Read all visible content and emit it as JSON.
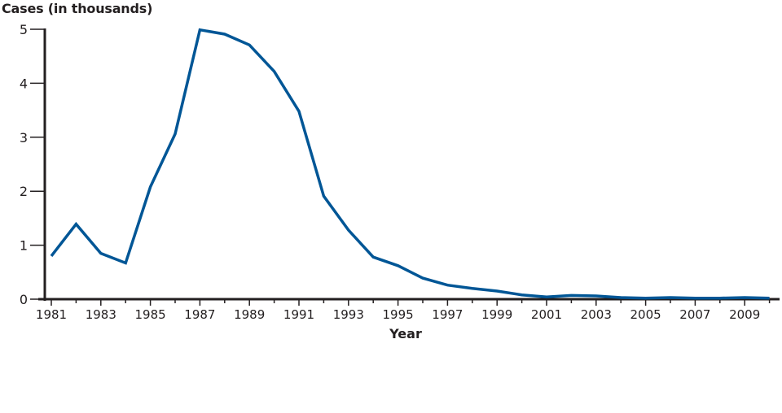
{
  "chart_data": {
    "type": "line",
    "title": "",
    "xlabel": "Year",
    "ylabel": "Cases (in thousands)",
    "ylim": [
      0,
      5
    ],
    "yticks": [
      0,
      1,
      2,
      3,
      4,
      5
    ],
    "xtick_labels": [
      "1981",
      "1983",
      "1985",
      "1987",
      "1989",
      "1991",
      "1993",
      "1995",
      "1997",
      "1999",
      "2001",
      "2003",
      "2005",
      "2007",
      "2009"
    ],
    "grid": false,
    "legend": null,
    "line_color": "#005696",
    "x": [
      1981,
      1982,
      1983,
      1984,
      1985,
      1986,
      1987,
      1988,
      1989,
      1990,
      1991,
      1992,
      1993,
      1994,
      1995,
      1996,
      1997,
      1998,
      1999,
      2000,
      2001,
      2002,
      2003,
      2004,
      2005,
      2006,
      2007,
      2008,
      2009,
      2010
    ],
    "series": [
      {
        "name": "Cases",
        "values": [
          0.8,
          1.39,
          0.85,
          0.67,
          2.08,
          3.06,
          4.99,
          4.91,
          4.71,
          4.22,
          3.48,
          1.91,
          1.28,
          0.78,
          0.62,
          0.39,
          0.26,
          0.2,
          0.15,
          0.08,
          0.04,
          0.07,
          0.06,
          0.03,
          0.02,
          0.03,
          0.02,
          0.02,
          0.03,
          0.02
        ]
      }
    ]
  }
}
